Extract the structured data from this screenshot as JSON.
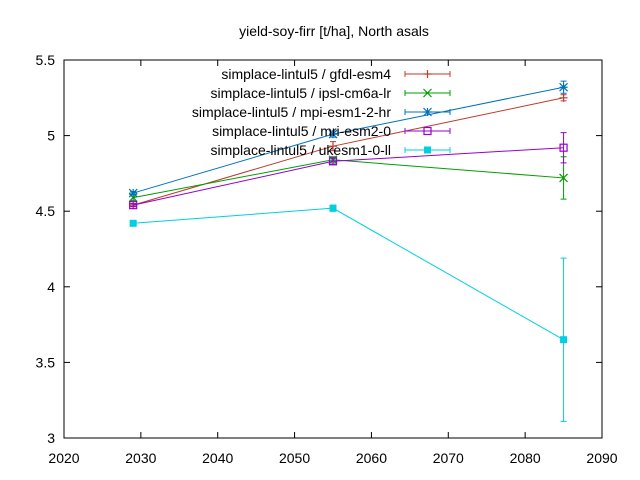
{
  "chart_data": {
    "type": "line",
    "title": "yield-soy-firr [t/ha], North asals",
    "xlabel": "",
    "ylabel": "",
    "xlim": [
      2020,
      2090
    ],
    "ylim": [
      3,
      5.5
    ],
    "xticks": [
      "2020",
      "2030",
      "2040",
      "2050",
      "2060",
      "2070",
      "2080",
      "2090"
    ],
    "yticks": [
      "3",
      "3.5",
      "4",
      "4.5",
      "5",
      "5.5"
    ],
    "grid": false,
    "legend_position": "top-right",
    "x": [
      2029,
      2055,
      2085
    ],
    "series": [
      {
        "name": "simplace-lintul5 / gfdl-esm4",
        "color": "#c0392b",
        "marker": "plus",
        "values": [
          4.54,
          4.93,
          5.25
        ],
        "errors": [
          0.01,
          0.03,
          0.02
        ]
      },
      {
        "name": "simplace-lintul5 / ipsl-cm6a-lr",
        "color": "#009e00",
        "marker": "cross",
        "values": [
          4.59,
          4.84,
          4.72
        ],
        "errors": [
          0.02,
          0.02,
          0.14
        ]
      },
      {
        "name": "simplace-lintul5 / mpi-esm1-2-hr",
        "color": "#0072bd",
        "marker": "star",
        "values": [
          4.62,
          5.01,
          5.32
        ],
        "errors": [
          0.01,
          0.02,
          0.04
        ]
      },
      {
        "name": "simplace-lintul5 / mri-esm2-0",
        "color": "#9400d3",
        "marker": "open-square",
        "values": [
          4.54,
          4.83,
          4.92
        ],
        "errors": [
          0.01,
          0.02,
          0.1
        ]
      },
      {
        "name": "simplace-lintul5 / ukesm1-0-ll",
        "color": "#00cfe0",
        "marker": "filled-square",
        "values": [
          4.42,
          4.52,
          3.65
        ],
        "errors": [
          0.01,
          0.02,
          0.54
        ]
      }
    ]
  }
}
